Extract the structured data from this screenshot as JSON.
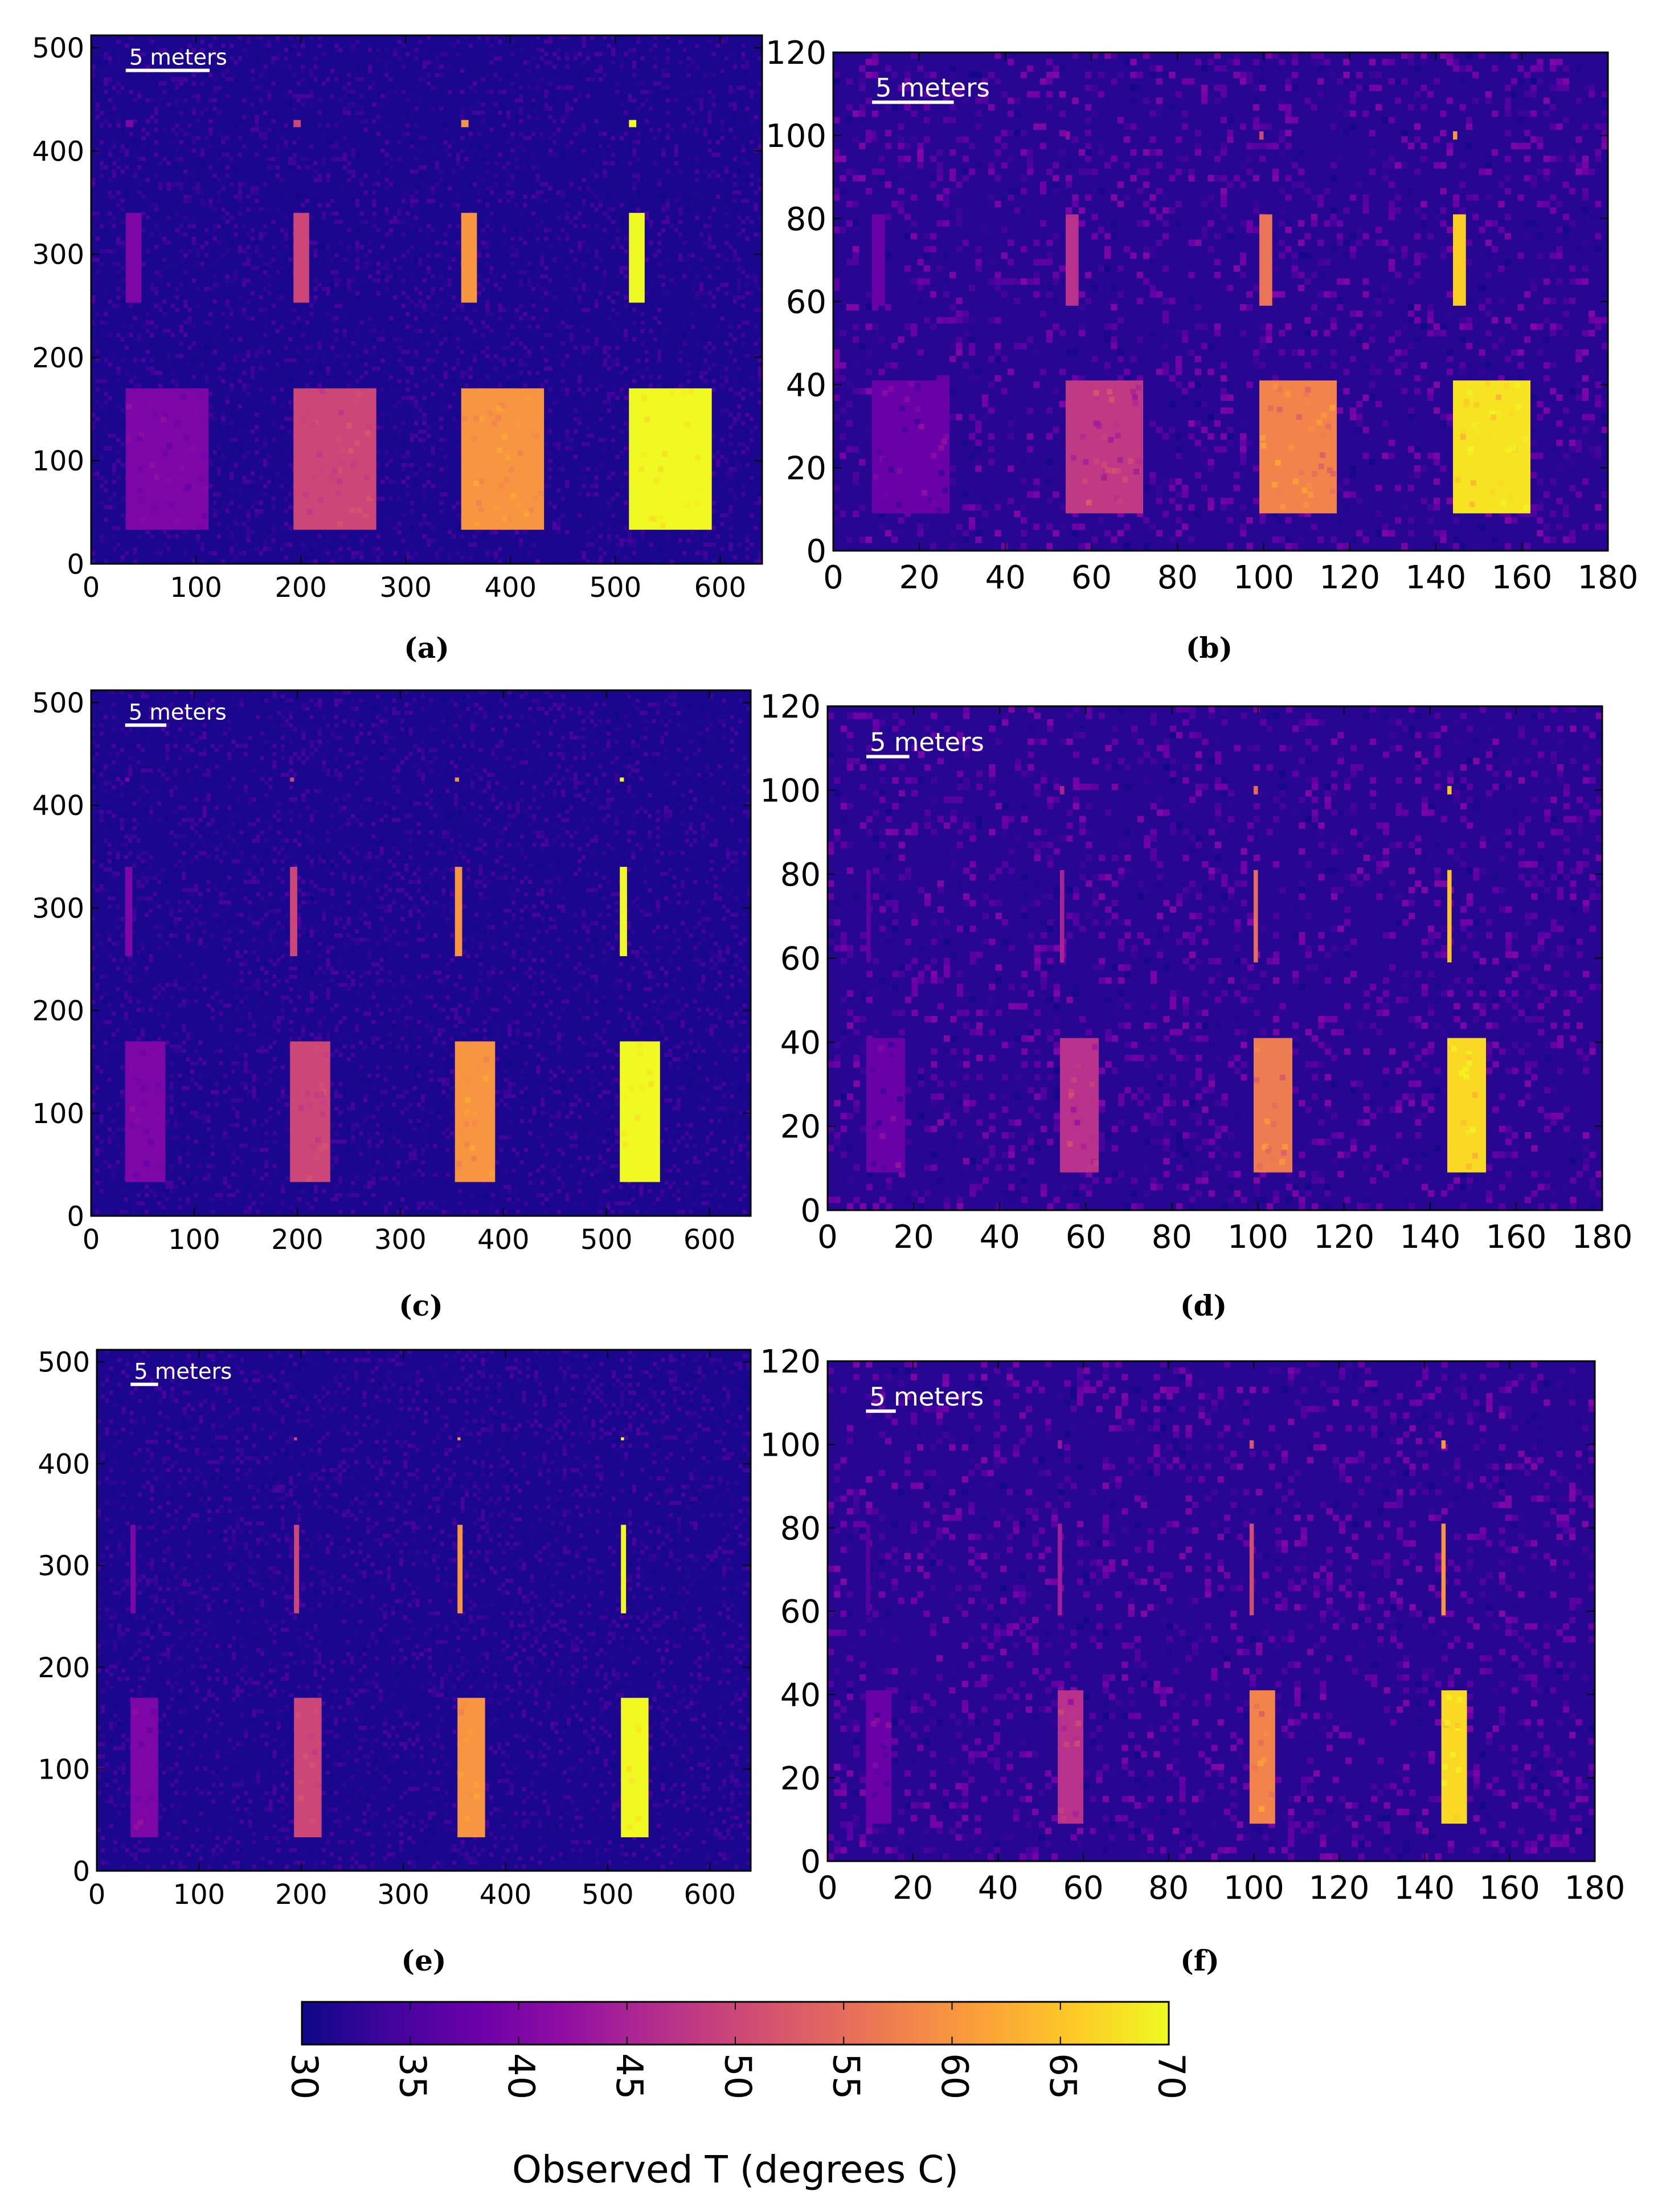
{
  "figure": {
    "colorbar": {
      "label": "Observed T (degrees C)",
      "ticks": [
        30,
        35,
        40,
        45,
        50,
        55,
        60,
        65,
        70
      ],
      "range": [
        30,
        70
      ],
      "colormap": "plasma",
      "colormap_stops": [
        "#0d0887",
        "#41049d",
        "#6a00a8",
        "#8f0da4",
        "#b12a90",
        "#cc4778",
        "#e16462",
        "#f2844b",
        "#fca636",
        "#fcce25",
        "#f0f921"
      ]
    }
  },
  "chart_data": [
    {
      "type": "heatmap",
      "panel": "(a)",
      "scale_bar_label": "5 meters",
      "xlim": [
        0,
        640
      ],
      "ylim": [
        0,
        512
      ],
      "xticks": [
        0,
        100,
        200,
        300,
        400,
        500,
        600
      ],
      "yticks": [
        0,
        100,
        200,
        300,
        400,
        500
      ],
      "background_temp": 31,
      "noise": 1.2,
      "scale_bar": {
        "x0": 33,
        "x1": 113,
        "y": 478
      },
      "regions": [
        {
          "x0": 33,
          "x1": 112,
          "y0": 33,
          "y1": 170,
          "temp": 40
        },
        {
          "x0": 193,
          "x1": 272,
          "y0": 33,
          "y1": 170,
          "temp": 50
        },
        {
          "x0": 353,
          "x1": 432,
          "y0": 33,
          "y1": 170,
          "temp": 60
        },
        {
          "x0": 513,
          "x1": 592,
          "y0": 33,
          "y1": 170,
          "temp": 70
        },
        {
          "x0": 33,
          "x1": 48,
          "y0": 253,
          "y1": 340,
          "temp": 40
        },
        {
          "x0": 193,
          "x1": 208,
          "y0": 253,
          "y1": 340,
          "temp": 50
        },
        {
          "x0": 353,
          "x1": 368,
          "y0": 253,
          "y1": 340,
          "temp": 60
        },
        {
          "x0": 513,
          "x1": 528,
          "y0": 253,
          "y1": 340,
          "temp": 70
        },
        {
          "x0": 33,
          "x1": 40,
          "y0": 423,
          "y1": 430,
          "temp": 40
        },
        {
          "x0": 193,
          "x1": 200,
          "y0": 423,
          "y1": 430,
          "temp": 50
        },
        {
          "x0": 353,
          "x1": 360,
          "y0": 423,
          "y1": 430,
          "temp": 60
        },
        {
          "x0": 513,
          "x1": 520,
          "y0": 423,
          "y1": 430,
          "temp": 70
        }
      ]
    },
    {
      "type": "heatmap",
      "panel": "(b)",
      "scale_bar_label": "5 meters",
      "xlim": [
        0,
        180
      ],
      "ylim": [
        0,
        120
      ],
      "xticks": [
        0,
        20,
        40,
        60,
        80,
        100,
        120,
        140,
        160,
        180
      ],
      "yticks": [
        0,
        20,
        40,
        60,
        80,
        100,
        120
      ],
      "background_temp": 32,
      "noise": 2.5,
      "scale_bar": {
        "x0": 9,
        "x1": 28,
        "y": 108
      },
      "regions": [
        {
          "x0": 9,
          "x1": 27,
          "y0": 9,
          "y1": 41,
          "temp": 38
        },
        {
          "x0": 54,
          "x1": 72,
          "y0": 9,
          "y1": 41,
          "temp": 48
        },
        {
          "x0": 99,
          "x1": 117,
          "y0": 9,
          "y1": 41,
          "temp": 58
        },
        {
          "x0": 144,
          "x1": 162,
          "y0": 9,
          "y1": 41,
          "temp": 68
        },
        {
          "x0": 9,
          "x1": 12,
          "y0": 59,
          "y1": 81,
          "temp": 38
        },
        {
          "x0": 54,
          "x1": 57,
          "y0": 59,
          "y1": 81,
          "temp": 47
        },
        {
          "x0": 99,
          "x1": 102,
          "y0": 59,
          "y1": 81,
          "temp": 56
        },
        {
          "x0": 144,
          "x1": 147,
          "y0": 59,
          "y1": 81,
          "temp": 66
        },
        {
          "x0": 9,
          "x1": 10,
          "y0": 99,
          "y1": 101,
          "temp": 36
        },
        {
          "x0": 54,
          "x1": 55,
          "y0": 99,
          "y1": 101,
          "temp": 42
        },
        {
          "x0": 99,
          "x1": 100,
          "y0": 99,
          "y1": 101,
          "temp": 50
        },
        {
          "x0": 144,
          "x1": 145,
          "y0": 99,
          "y1": 101,
          "temp": 60
        }
      ]
    },
    {
      "type": "heatmap",
      "panel": "(c)",
      "scale_bar_label": "5 meters",
      "xlim": [
        0,
        640
      ],
      "ylim": [
        0,
        512
      ],
      "xticks": [
        0,
        100,
        200,
        300,
        400,
        500,
        600
      ],
      "yticks": [
        0,
        100,
        200,
        300,
        400,
        500
      ],
      "background_temp": 31,
      "noise": 1.2,
      "scale_bar": {
        "x0": 33,
        "x1": 73,
        "y": 478
      },
      "regions": [
        {
          "x0": 33,
          "x1": 72,
          "y0": 33,
          "y1": 170,
          "temp": 40
        },
        {
          "x0": 193,
          "x1": 232,
          "y0": 33,
          "y1": 170,
          "temp": 50
        },
        {
          "x0": 353,
          "x1": 392,
          "y0": 33,
          "y1": 170,
          "temp": 60
        },
        {
          "x0": 513,
          "x1": 552,
          "y0": 33,
          "y1": 170,
          "temp": 70
        },
        {
          "x0": 33,
          "x1": 40,
          "y0": 253,
          "y1": 340,
          "temp": 40
        },
        {
          "x0": 193,
          "x1": 200,
          "y0": 253,
          "y1": 340,
          "temp": 50
        },
        {
          "x0": 353,
          "x1": 360,
          "y0": 253,
          "y1": 340,
          "temp": 60
        },
        {
          "x0": 513,
          "x1": 520,
          "y0": 253,
          "y1": 340,
          "temp": 70
        },
        {
          "x0": 33,
          "x1": 37,
          "y0": 423,
          "y1": 427,
          "temp": 40
        },
        {
          "x0": 193,
          "x1": 197,
          "y0": 423,
          "y1": 427,
          "temp": 50
        },
        {
          "x0": 353,
          "x1": 357,
          "y0": 423,
          "y1": 427,
          "temp": 60
        },
        {
          "x0": 513,
          "x1": 517,
          "y0": 423,
          "y1": 427,
          "temp": 70
        }
      ]
    },
    {
      "type": "heatmap",
      "panel": "(d)",
      "scale_bar_label": "5 meters",
      "xlim": [
        0,
        180
      ],
      "ylim": [
        0,
        120
      ],
      "xticks": [
        0,
        20,
        40,
        60,
        80,
        100,
        120,
        140,
        160,
        180
      ],
      "yticks": [
        0,
        20,
        40,
        60,
        80,
        100,
        120
      ],
      "background_temp": 32,
      "noise": 2.5,
      "scale_bar": {
        "x0": 9,
        "x1": 19,
        "y": 108
      },
      "regions": [
        {
          "x0": 9,
          "x1": 18,
          "y0": 9,
          "y1": 41,
          "temp": 38
        },
        {
          "x0": 54,
          "x1": 63,
          "y0": 9,
          "y1": 41,
          "temp": 47
        },
        {
          "x0": 99,
          "x1": 108,
          "y0": 9,
          "y1": 41,
          "temp": 57
        },
        {
          "x0": 144,
          "x1": 153,
          "y0": 9,
          "y1": 41,
          "temp": 67
        },
        {
          "x0": 9,
          "x1": 10,
          "y0": 59,
          "y1": 81,
          "temp": 37
        },
        {
          "x0": 54,
          "x1": 55,
          "y0": 59,
          "y1": 81,
          "temp": 45
        },
        {
          "x0": 99,
          "x1": 100,
          "y0": 59,
          "y1": 81,
          "temp": 55
        },
        {
          "x0": 144,
          "x1": 145,
          "y0": 59,
          "y1": 81,
          "temp": 65
        },
        {
          "x0": 54,
          "x1": 55,
          "y0": 99,
          "y1": 101,
          "temp": 45
        },
        {
          "x0": 99,
          "x1": 100,
          "y0": 99,
          "y1": 101,
          "temp": 55
        },
        {
          "x0": 144,
          "x1": 145,
          "y0": 99,
          "y1": 101,
          "temp": 65
        }
      ]
    },
    {
      "type": "heatmap",
      "panel": "(e)",
      "scale_bar_label": "5 meters",
      "xlim": [
        0,
        640
      ],
      "ylim": [
        0,
        512
      ],
      "xticks": [
        0,
        100,
        200,
        300,
        400,
        500,
        600
      ],
      "yticks": [
        0,
        100,
        200,
        300,
        400,
        500
      ],
      "background_temp": 31,
      "noise": 1.2,
      "scale_bar": {
        "x0": 33,
        "x1": 60,
        "y": 478
      },
      "regions": [
        {
          "x0": 33,
          "x1": 60,
          "y0": 33,
          "y1": 170,
          "temp": 40
        },
        {
          "x0": 193,
          "x1": 220,
          "y0": 33,
          "y1": 170,
          "temp": 50
        },
        {
          "x0": 353,
          "x1": 380,
          "y0": 33,
          "y1": 170,
          "temp": 60
        },
        {
          "x0": 513,
          "x1": 540,
          "y0": 33,
          "y1": 170,
          "temp": 70
        },
        {
          "x0": 33,
          "x1": 38,
          "y0": 253,
          "y1": 340,
          "temp": 40
        },
        {
          "x0": 193,
          "x1": 198,
          "y0": 253,
          "y1": 340,
          "temp": 50
        },
        {
          "x0": 353,
          "x1": 358,
          "y0": 253,
          "y1": 340,
          "temp": 60
        },
        {
          "x0": 513,
          "x1": 518,
          "y0": 253,
          "y1": 340,
          "temp": 70
        },
        {
          "x0": 193,
          "x1": 196,
          "y0": 423,
          "y1": 426,
          "temp": 50
        },
        {
          "x0": 353,
          "x1": 356,
          "y0": 423,
          "y1": 426,
          "temp": 60
        },
        {
          "x0": 513,
          "x1": 516,
          "y0": 423,
          "y1": 426,
          "temp": 70
        }
      ]
    },
    {
      "type": "heatmap",
      "panel": "(f)",
      "scale_bar_label": "5 meters",
      "xlim": [
        0,
        180
      ],
      "ylim": [
        0,
        120
      ],
      "xticks": [
        0,
        20,
        40,
        60,
        80,
        100,
        120,
        140,
        160,
        180
      ],
      "yticks": [
        0,
        20,
        40,
        60,
        80,
        100,
        120
      ],
      "background_temp": 32,
      "noise": 2.5,
      "scale_bar": {
        "x0": 9,
        "x1": 16,
        "y": 108
      },
      "regions": [
        {
          "x0": 9,
          "x1": 15,
          "y0": 9,
          "y1": 41,
          "temp": 38
        },
        {
          "x0": 54,
          "x1": 60,
          "y0": 9,
          "y1": 41,
          "temp": 47
        },
        {
          "x0": 99,
          "x1": 105,
          "y0": 9,
          "y1": 41,
          "temp": 58
        },
        {
          "x0": 144,
          "x1": 150,
          "y0": 9,
          "y1": 41,
          "temp": 67
        },
        {
          "x0": 9,
          "x1": 10,
          "y0": 59,
          "y1": 81,
          "temp": 36
        },
        {
          "x0": 54,
          "x1": 55,
          "y0": 59,
          "y1": 81,
          "temp": 44
        },
        {
          "x0": 99,
          "x1": 100,
          "y0": 59,
          "y1": 81,
          "temp": 51
        },
        {
          "x0": 144,
          "x1": 145,
          "y0": 59,
          "y1": 81,
          "temp": 60
        },
        {
          "x0": 54,
          "x1": 55,
          "y0": 99,
          "y1": 101,
          "temp": 43
        },
        {
          "x0": 99,
          "x1": 100,
          "y0": 99,
          "y1": 101,
          "temp": 52
        },
        {
          "x0": 144,
          "x1": 145,
          "y0": 99,
          "y1": 101,
          "temp": 60
        }
      ]
    }
  ]
}
